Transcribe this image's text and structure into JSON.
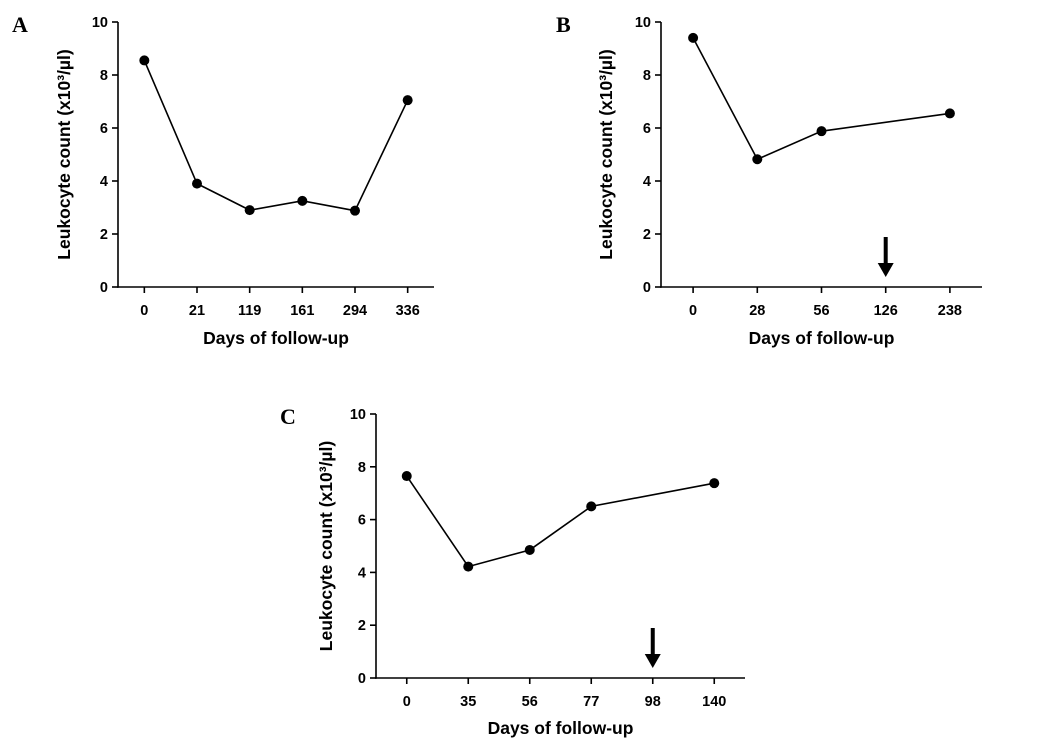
{
  "chart_data": [
    {
      "panel": "A",
      "type": "line",
      "xlabel": "Days of follow-up",
      "ylabel": "Leukocyte count (x10³/µl)",
      "categories": [
        "0",
        "21",
        "119",
        "161",
        "294",
        "336"
      ],
      "values": [
        8.55,
        3.9,
        2.9,
        3.25,
        2.88,
        7.05
      ],
      "ylim": [
        0,
        10
      ],
      "yticks": [
        "0",
        "2",
        "4",
        "6",
        "8",
        "10"
      ],
      "grid": false,
      "arrow_at": null
    },
    {
      "panel": "B",
      "type": "line",
      "xlabel": "Days of follow-up",
      "ylabel": "Leukocyte count (x10³/µl)",
      "categories": [
        "0",
        "28",
        "56",
        "126",
        "238"
      ],
      "values": [
        9.4,
        4.82,
        5.88,
        null,
        6.55
      ],
      "ylim": [
        0,
        10
      ],
      "yticks": [
        "0",
        "2",
        "4",
        "6",
        "8",
        "10"
      ],
      "grid": false,
      "arrow_at": "126"
    },
    {
      "panel": "C",
      "type": "line",
      "xlabel": "Days of follow-up",
      "ylabel": "Leukocyte count (x10³/µl)",
      "categories": [
        "0",
        "35",
        "56",
        "77",
        "98",
        "140"
      ],
      "values": [
        7.65,
        4.22,
        4.85,
        6.5,
        null,
        7.38
      ],
      "ylim": [
        0,
        10
      ],
      "yticks": [
        "0",
        "2",
        "4",
        "6",
        "8",
        "10"
      ],
      "grid": false,
      "arrow_at": "98"
    }
  ]
}
